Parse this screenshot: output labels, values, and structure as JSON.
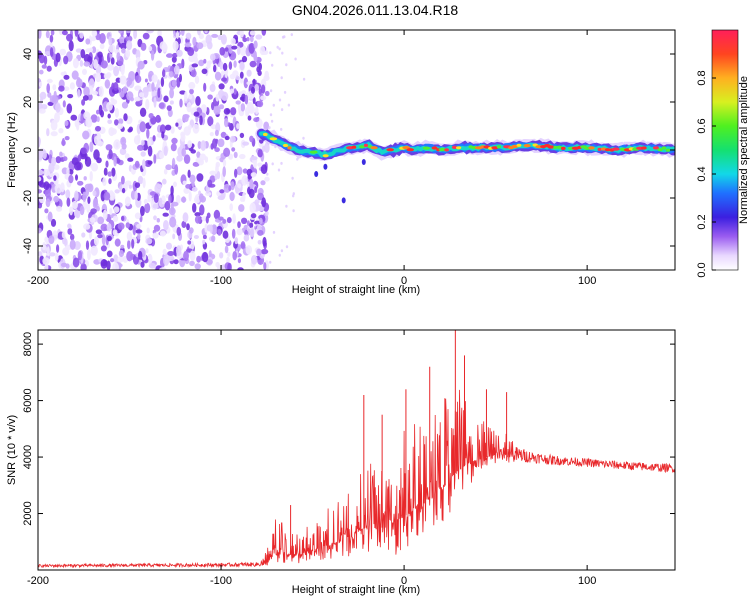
{
  "title": "GN04.2026.011.13.04.R18",
  "chart_data": [
    {
      "type": "heatmap",
      "name": "spectrogram",
      "xlabel": "Height of straight line (km)",
      "ylabel": "Frequency (Hz)",
      "xlim": [
        -200,
        148
      ],
      "ylim": [
        -50,
        50
      ],
      "xticks": [
        -200,
        -100,
        0,
        100
      ],
      "yticks": [
        -40,
        -20,
        0,
        20,
        40
      ],
      "noise_region_x": [
        -200,
        -78
      ],
      "signal_trace": {
        "x": [
          -78,
          -72,
          -65,
          -58,
          -50,
          -42,
          -35,
          -28,
          -20,
          -12,
          -5,
          0,
          5,
          12,
          20,
          30,
          40,
          55,
          70,
          85,
          100,
          115,
          130,
          148
        ],
        "freq": [
          7,
          5,
          2,
          0,
          -1,
          -2,
          0,
          1,
          2,
          -1,
          0,
          1,
          0,
          1,
          0,
          1,
          1,
          1,
          2,
          1,
          1,
          0,
          1,
          0
        ]
      },
      "colorbar": {
        "label": "Normalized spectral amplitude",
        "range": [
          0.0,
          1.0
        ],
        "ticks": [
          0.0,
          0.2,
          0.4,
          0.6,
          0.8
        ],
        "tick_labels": [
          "0.0",
          "0.2",
          "0.4",
          "0.6",
          "0.8"
        ]
      }
    },
    {
      "type": "line",
      "name": "snr",
      "xlabel": "Height of straight line (km)",
      "ylabel": "SNR (10 * v/v)",
      "xlim": [
        -200,
        148
      ],
      "ylim": [
        0,
        8500
      ],
      "xticks": [
        -200,
        -100,
        0,
        100
      ],
      "yticks": [
        2000,
        4000,
        6000,
        8000
      ],
      "color": "#e8282b",
      "envelope": {
        "x": [
          -200,
          -100,
          -80,
          -75,
          -70,
          -65,
          -60,
          -55,
          -50,
          -45,
          -40,
          -35,
          -30,
          -25,
          -20,
          -15,
          -10,
          -5,
          0,
          5,
          10,
          15,
          20,
          25,
          30,
          35,
          40,
          45,
          50,
          55,
          60,
          70,
          80,
          100,
          120,
          148
        ],
        "baseline": [
          150,
          180,
          200,
          300,
          700,
          600,
          500,
          600,
          700,
          800,
          900,
          1000,
          1200,
          1400,
          1500,
          1500,
          1500,
          1700,
          1900,
          2100,
          2300,
          2600,
          2900,
          3200,
          3600,
          3800,
          3900,
          4000,
          4100,
          4100,
          4100,
          4000,
          3900,
          3800,
          3700,
          3600
        ],
        "spread": [
          100,
          120,
          150,
          400,
          1200,
          1000,
          700,
          900,
          1000,
          1100,
          1400,
          1600,
          1800,
          2200,
          2400,
          2400,
          2600,
          3000,
          3200,
          3200,
          3200,
          3300,
          3200,
          3000,
          2800,
          2300,
          1600,
          1200,
          1000,
          900,
          600,
          400,
          350,
          300,
          300,
          300
        ]
      },
      "spikes": [
        {
          "x": -62,
          "y": 2300
        },
        {
          "x": -22,
          "y": 6200
        },
        {
          "x": -12,
          "y": 5500
        },
        {
          "x": 1,
          "y": 6400
        },
        {
          "x": 14,
          "y": 7200
        },
        {
          "x": 28,
          "y": 8500
        },
        {
          "x": 33,
          "y": 7600
        },
        {
          "x": 45,
          "y": 6400
        },
        {
          "x": 56,
          "y": 6300
        }
      ]
    }
  ]
}
